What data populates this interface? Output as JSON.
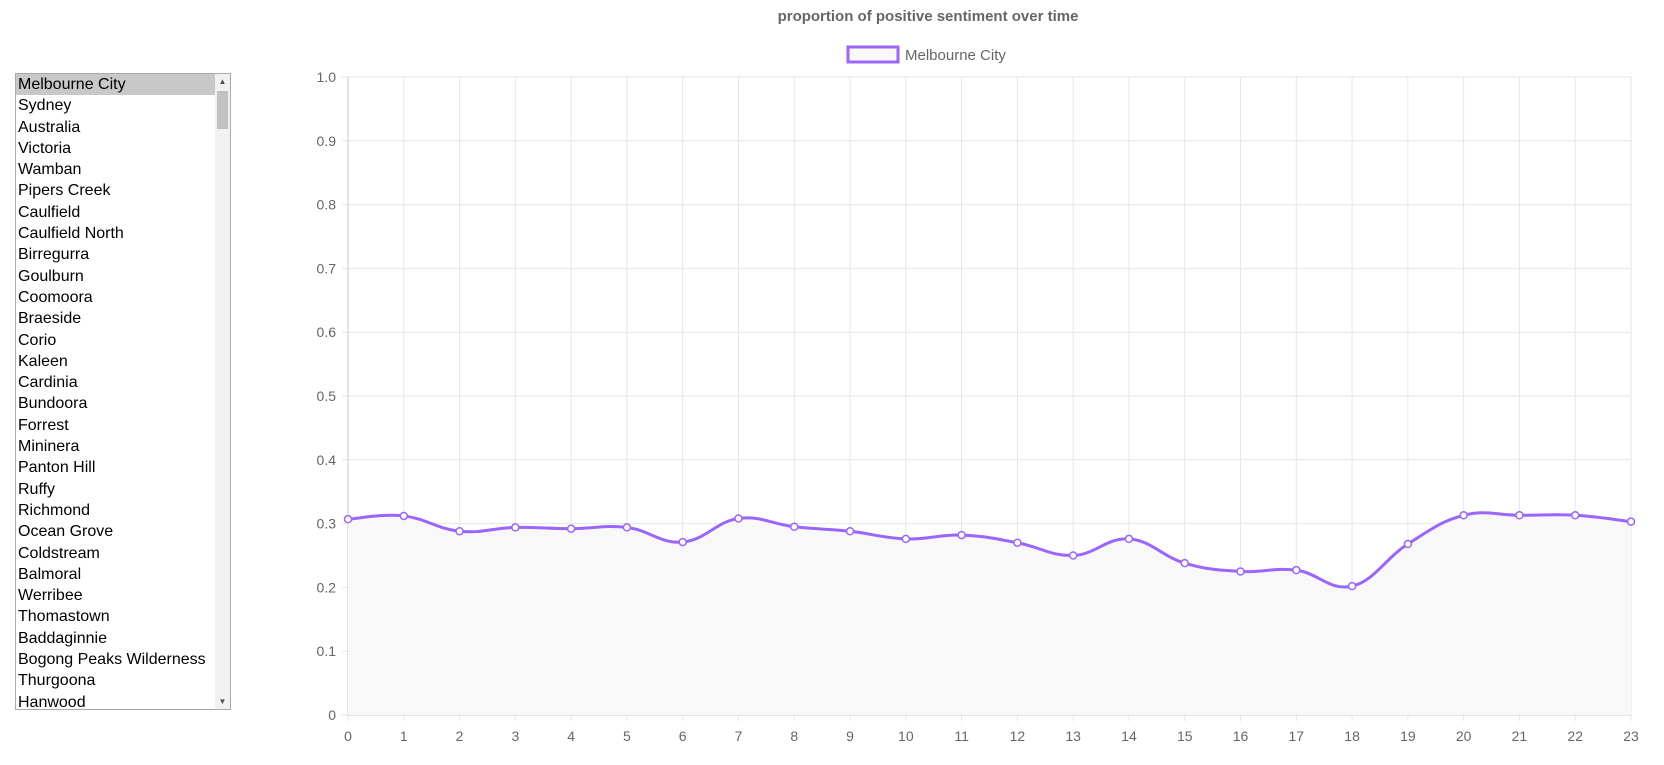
{
  "location_list": {
    "selected_index": 0,
    "items": [
      "Melbourne City",
      "Sydney",
      "Australia",
      "Victoria",
      "Wamban",
      "Pipers Creek",
      "Caulfield",
      "Caulfield North",
      "Birregurra",
      "Goulburn",
      "Coomoora",
      "Braeside",
      "Corio",
      "Kaleen",
      "Cardinia",
      "Bundoora",
      "Forrest",
      "Mininera",
      "Panton Hill",
      "Ruffy",
      "Richmond",
      "Ocean Grove",
      "Coldstream",
      "Balmoral",
      "Werribee",
      "Thomastown",
      "Baddaginnie",
      "Bogong Peaks Wilderness",
      "Thurgoona",
      "Hanwood"
    ],
    "scroll_up_icon": "▲",
    "scroll_down_icon": "▼"
  },
  "chart_data": {
    "type": "line",
    "title": "proportion of positive sentiment over time",
    "x": [
      0,
      1,
      2,
      3,
      4,
      5,
      6,
      7,
      8,
      9,
      10,
      11,
      12,
      13,
      14,
      15,
      16,
      17,
      18,
      19,
      20,
      21,
      22,
      23
    ],
    "series": [
      {
        "name": "Melbourne City",
        "values": [
          0.307,
          0.312,
          0.288,
          0.294,
          0.292,
          0.294,
          0.271,
          0.308,
          0.295,
          0.288,
          0.276,
          0.282,
          0.27,
          0.25,
          0.276,
          0.238,
          0.225,
          0.227,
          0.202,
          0.268,
          0.313,
          0.313,
          0.313,
          0.303
        ],
        "color": "#9966ff",
        "fill": "#f8f8f8"
      }
    ],
    "ylim": [
      0,
      1.0
    ],
    "yticks": [
      "0",
      "0.1",
      "0.2",
      "0.3",
      "0.4",
      "0.5",
      "0.6",
      "0.7",
      "0.8",
      "0.9",
      "1.0"
    ],
    "xticks": [
      "0",
      "1",
      "2",
      "3",
      "4",
      "5",
      "6",
      "7",
      "8",
      "9",
      "10",
      "11",
      "12",
      "13",
      "14",
      "15",
      "16",
      "17",
      "18",
      "19",
      "20",
      "21",
      "22",
      "23"
    ],
    "grid": true,
    "legend_position": "top-center"
  }
}
